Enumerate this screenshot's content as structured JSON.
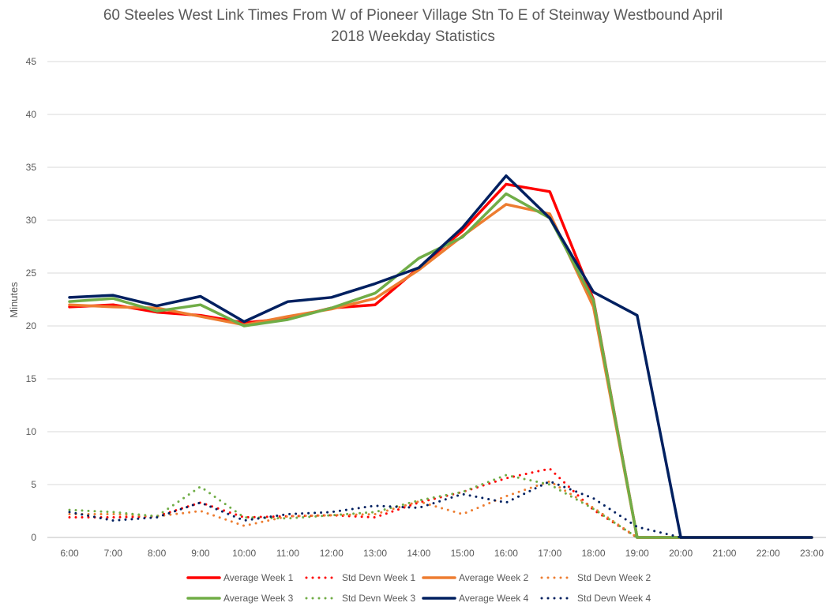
{
  "chart_data": {
    "type": "line",
    "title_line1": "60 Steeles West Link Times From W of Pioneer Village Stn To E of Steinway Westbound April",
    "title_line2": "2018 Weekday Statistics",
    "xlabel": "",
    "ylabel": "Minutes",
    "ylim": [
      0,
      45
    ],
    "yticks": [
      0,
      5,
      10,
      15,
      20,
      25,
      30,
      35,
      40,
      45
    ],
    "grid": true,
    "legend_position": "bottom",
    "categories": [
      "6:00",
      "7:00",
      "8:00",
      "9:00",
      "10:00",
      "11:00",
      "12:00",
      "13:00",
      "14:00",
      "15:00",
      "16:00",
      "17:00",
      "18:00",
      "19:00",
      "20:00",
      "21:00",
      "22:00",
      "23:00"
    ],
    "series": [
      {
        "name": "Average Week 1",
        "color": "#FF0000",
        "style": "solid",
        "values": [
          21.8,
          22.0,
          21.3,
          21.0,
          20.3,
          20.7,
          21.7,
          22.0,
          25.5,
          29.0,
          33.4,
          32.7,
          22.5,
          0,
          0,
          0,
          0,
          0
        ]
      },
      {
        "name": "Std Devn Week 1",
        "color": "#FF0000",
        "style": "dotted",
        "values": [
          1.9,
          1.9,
          2.0,
          3.3,
          1.9,
          2.0,
          2.1,
          1.9,
          3.3,
          4.3,
          5.6,
          6.5,
          2.6,
          0,
          0,
          0,
          0,
          0
        ]
      },
      {
        "name": "Average Week 2",
        "color": "#ED7D31",
        "style": "solid",
        "values": [
          22.0,
          21.8,
          21.7,
          20.9,
          20.1,
          20.9,
          21.6,
          22.6,
          25.3,
          28.5,
          31.5,
          30.6,
          21.8,
          0,
          0,
          0,
          0,
          0
        ]
      },
      {
        "name": "Std Devn Week 2",
        "color": "#ED7D31",
        "style": "dotted",
        "values": [
          2.2,
          2.2,
          2.0,
          2.5,
          1.1,
          2.0,
          2.1,
          2.2,
          3.4,
          2.2,
          3.9,
          5.3,
          2.8,
          0,
          0,
          0,
          0,
          0
        ]
      },
      {
        "name": "Average Week 3",
        "color": "#70AD47",
        "style": "solid",
        "values": [
          22.3,
          22.6,
          21.4,
          22.0,
          20.0,
          20.6,
          21.7,
          23.1,
          26.4,
          28.4,
          32.5,
          30.2,
          22.4,
          0,
          0,
          0,
          0,
          0
        ]
      },
      {
        "name": "Std Devn Week 3",
        "color": "#70AD47",
        "style": "dotted",
        "values": [
          2.6,
          2.4,
          2.0,
          4.8,
          1.9,
          1.8,
          2.1,
          2.4,
          3.5,
          4.3,
          5.9,
          5.0,
          2.7,
          0,
          0,
          0,
          0,
          0
        ]
      },
      {
        "name": "Average Week 4",
        "color": "#002060",
        "style": "solid",
        "values": [
          22.7,
          22.9,
          21.9,
          22.8,
          20.4,
          22.3,
          22.7,
          24.0,
          25.5,
          29.3,
          34.2,
          30.2,
          23.2,
          21.0,
          0,
          0,
          0,
          0
        ]
      },
      {
        "name": "Std Devn Week 4",
        "color": "#002060",
        "style": "dotted",
        "values": [
          2.4,
          1.6,
          1.9,
          3.3,
          1.6,
          2.2,
          2.4,
          3.0,
          2.8,
          4.1,
          3.3,
          5.3,
          3.7,
          1.0,
          0,
          0,
          0,
          0
        ]
      }
    ]
  }
}
